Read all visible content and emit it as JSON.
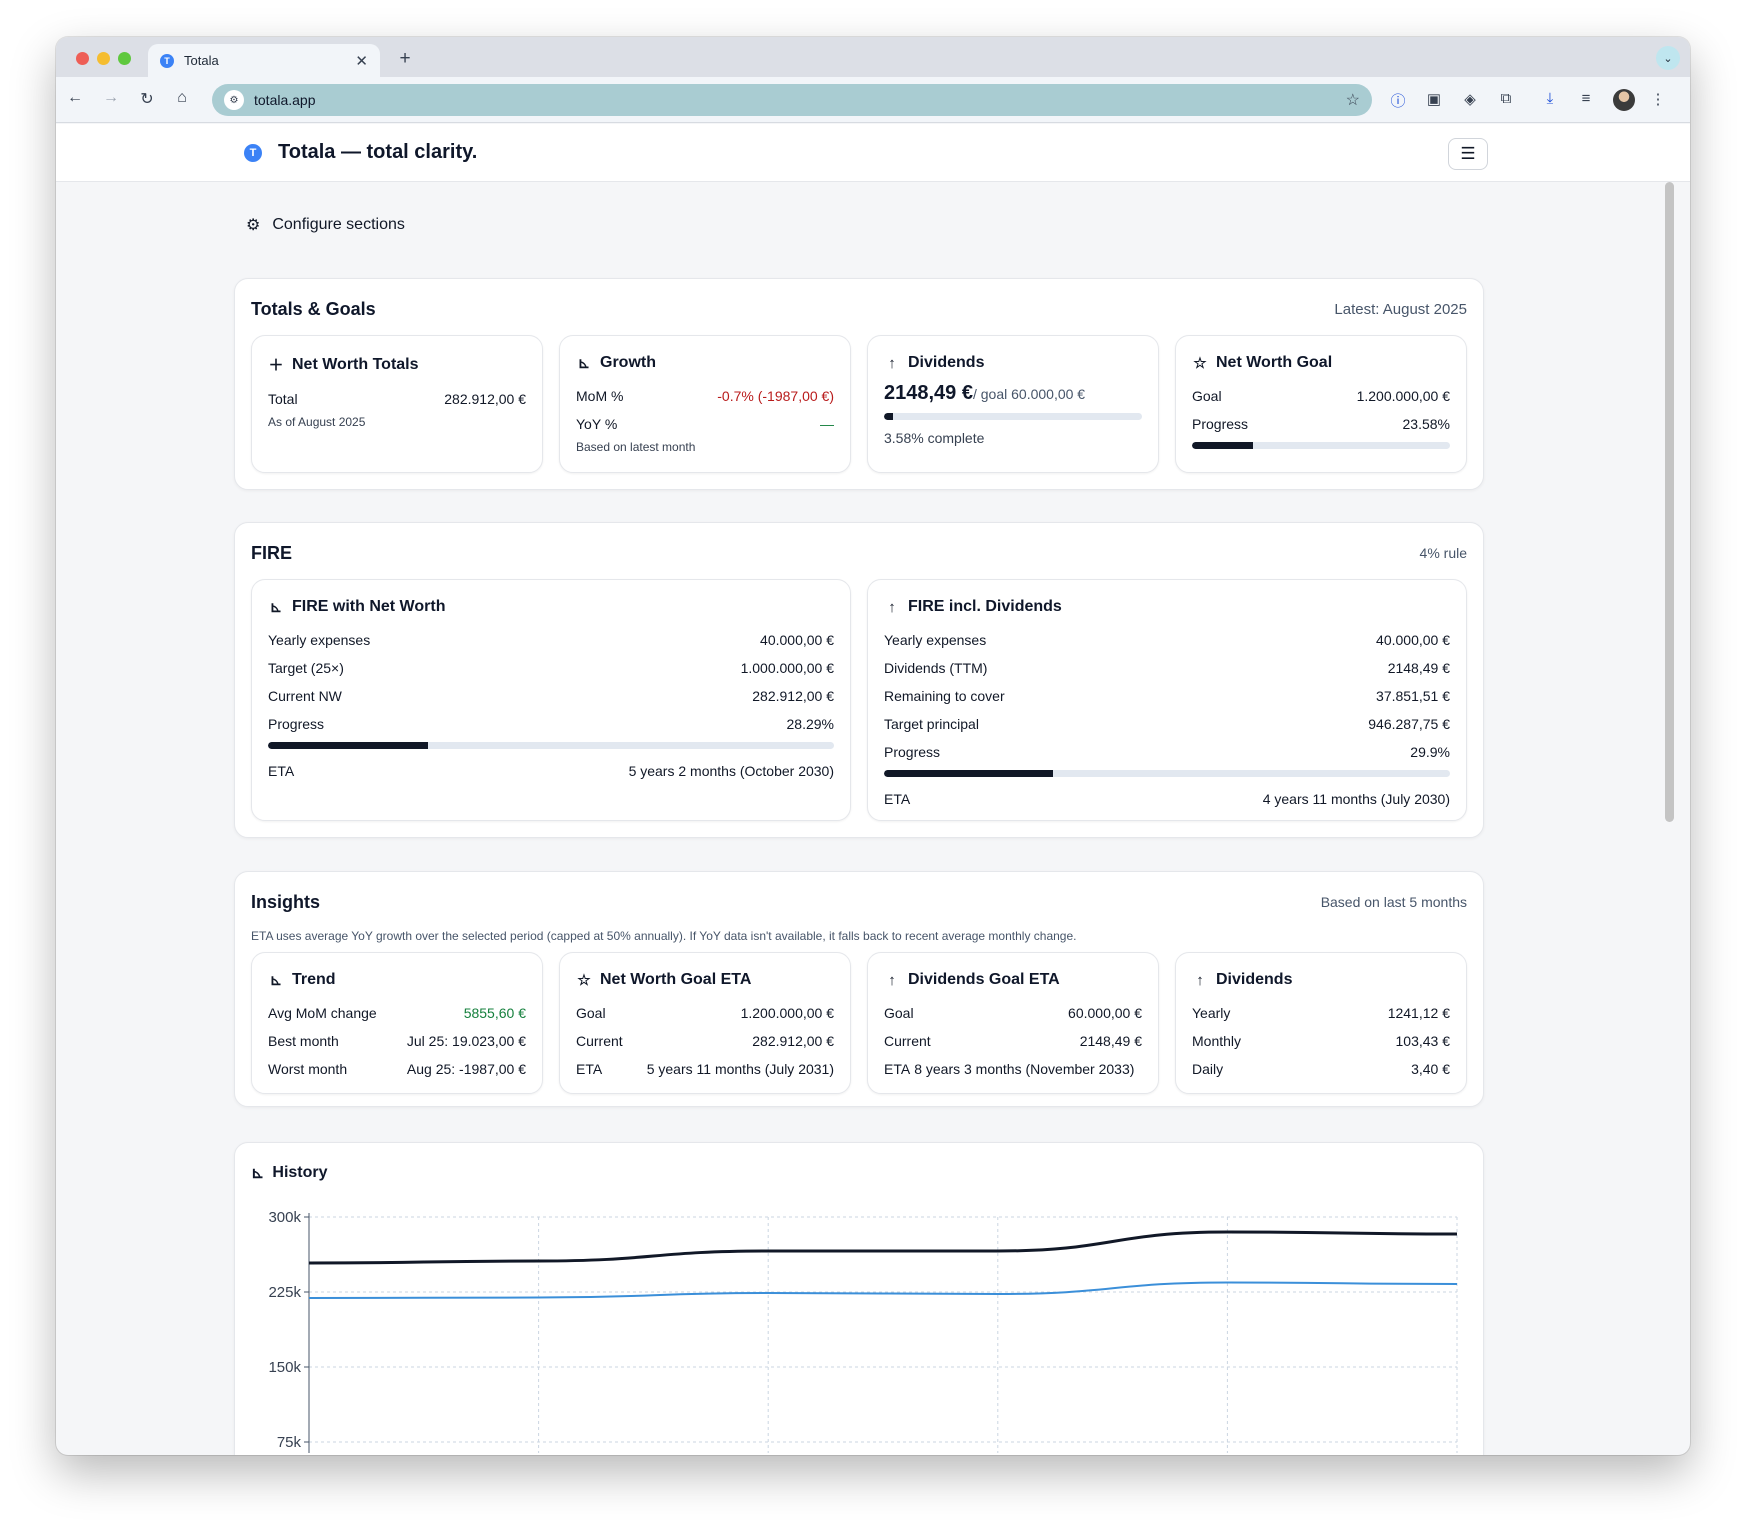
{
  "browser": {
    "tab_title": "Totala",
    "tab_favicon": "T",
    "url": "totala.app"
  },
  "app": {
    "logo": "T",
    "title": "Totala — total clarity.",
    "configure_label": "Configure sections"
  },
  "totals": {
    "title": "Totals & Goals",
    "latest": "Latest: August 2025",
    "net_worth": {
      "title": "Net Worth Totals",
      "total_label": "Total",
      "total_value": "282.912,00 €",
      "note": "As of August 2025"
    },
    "growth": {
      "title": "Growth",
      "mom_label": "MoM %",
      "mom_value": "-0.7% (-1987,00 €)",
      "yoy_label": "YoY %",
      "yoy_value": "—",
      "note": "Based on latest month"
    },
    "dividends": {
      "title": "Dividends",
      "value": "2148,49 €",
      "goal": "/ goal 60.000,00 €",
      "progress": 0.0358,
      "complete": "3.58% complete"
    },
    "goal": {
      "title": "Net Worth Goal",
      "goal_label": "Goal",
      "goal_value": "1.200.000,00 €",
      "progress_label": "Progress",
      "progress_value": "23.58%",
      "progress": 0.2358
    }
  },
  "fire": {
    "title": "FIRE",
    "rule": "4% rule",
    "nw": {
      "title": "FIRE with Net Worth",
      "rows": [
        {
          "label": "Yearly expenses",
          "value": "40.000,00 €"
        },
        {
          "label": "Target (25×)",
          "value": "1.000.000,00 €"
        },
        {
          "label": "Current NW",
          "value": "282.912,00 €"
        },
        {
          "label": "Progress",
          "value": "28.29%"
        }
      ],
      "progress": 0.2829,
      "eta_label": "ETA",
      "eta_value": "5 years 2 months (October 2030)"
    },
    "div": {
      "title": "FIRE incl. Dividends",
      "rows": [
        {
          "label": "Yearly expenses",
          "value": "40.000,00 €"
        },
        {
          "label": "Dividends (TTM)",
          "value": "2148,49 €"
        },
        {
          "label": "Remaining to cover",
          "value": "37.851,51 €"
        },
        {
          "label": "Target principal",
          "value": "946.287,75 €"
        },
        {
          "label": "Progress",
          "value": "29.9%"
        }
      ],
      "progress": 0.299,
      "eta_label": "ETA",
      "eta_value": "4 years 11 months (July 2030)"
    }
  },
  "insights": {
    "title": "Insights",
    "meta": "Based on last 5 months",
    "note": "ETA uses average YoY growth over the selected period (capped at 50% annually). If YoY data isn't available, it falls back to recent average monthly change.",
    "trend": {
      "title": "Trend",
      "rows": [
        {
          "label": "Avg MoM change",
          "value": "5855,60 €"
        },
        {
          "label": "Best month",
          "value": "Jul 25: 19.023,00 €"
        },
        {
          "label": "Worst month",
          "value": "Aug 25: -1987,00 €"
        }
      ]
    },
    "nw_goal": {
      "title": "Net Worth Goal ETA",
      "rows": [
        {
          "label": "Goal",
          "value": "1.200.000,00 €"
        },
        {
          "label": "Current",
          "value": "282.912,00 €"
        },
        {
          "label": "ETA",
          "value": "5 years 11 months (July 2031)"
        }
      ]
    },
    "div_goal": {
      "title": "Dividends Goal ETA",
      "rows": [
        {
          "label": "Goal",
          "value": "60.000,00 €"
        },
        {
          "label": "Current",
          "value": "2148,49 €"
        }
      ],
      "eta_label": "ETA",
      "eta_value": "8 years 3 months (November 2033)"
    },
    "dividends": {
      "title": "Dividends",
      "rows": [
        {
          "label": "Yearly",
          "value": "1241,12 €"
        },
        {
          "label": "Monthly",
          "value": "103,43 €"
        },
        {
          "label": "Daily",
          "value": "3,40 €"
        }
      ]
    }
  },
  "history": {
    "title": "History",
    "chart_data": {
      "type": "line",
      "title": "",
      "ylim": [
        0,
        300000
      ],
      "yticks": [
        {
          "value": 300000,
          "label": "300k"
        },
        {
          "value": 225000,
          "label": "225k"
        },
        {
          "value": 150000,
          "label": "150k"
        },
        {
          "value": 75000,
          "label": "75k"
        }
      ],
      "grid": true,
      "series": [
        {
          "color": "#111827",
          "values": [
            254000,
            256000,
            266000,
            266000,
            285000,
            283000
          ]
        },
        {
          "color": "#3b8fd9",
          "values": [
            219000,
            219500,
            224000,
            223000,
            234500,
            233000
          ]
        }
      ]
    }
  },
  "colors": {
    "accent": "#3b82f6",
    "negative": "#b91c1c",
    "positive": "#15803d"
  }
}
